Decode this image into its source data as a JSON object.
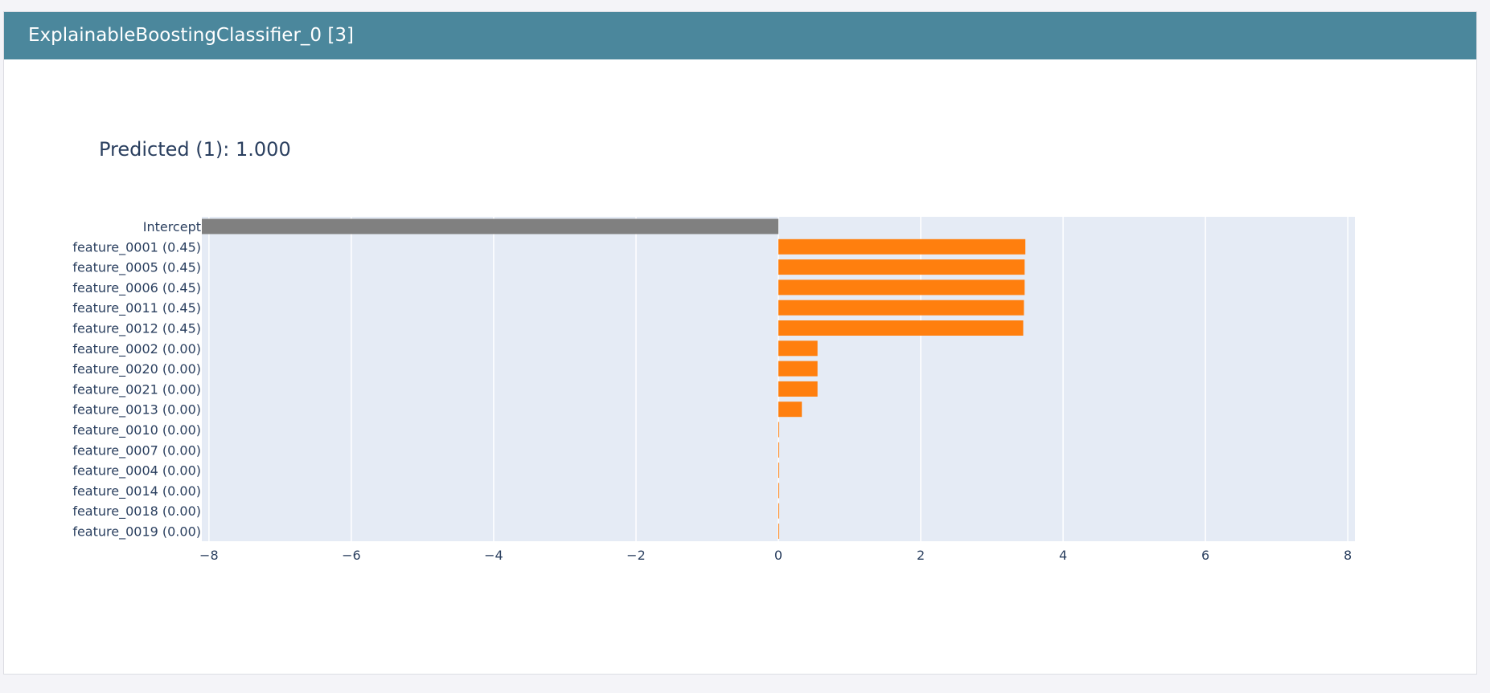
{
  "header": {
    "title": "ExplainableBoostingClassifier_0 [3]"
  },
  "colors": {
    "header_bg": "#4b879c",
    "plot_bg": "#e5ebf5",
    "intercept_bar": "#808080",
    "feature_bar": "#ff7f0e",
    "text": "#2a3f5f"
  },
  "chart_data": {
    "type": "bar",
    "orientation": "horizontal",
    "title": "Predicted (1): 1.000",
    "xlabel": "",
    "ylabel": "",
    "xlim": [
      -8.1,
      8.1
    ],
    "xticks": [
      -8,
      -6,
      -4,
      -2,
      0,
      2,
      4,
      6,
      8
    ],
    "xtick_labels": [
      "−8",
      "−6",
      "−4",
      "−2",
      "0",
      "2",
      "4",
      "6",
      "8"
    ],
    "grid": true,
    "categories": [
      "Intercept",
      "feature_0001 (0.45)",
      "feature_0005 (0.45)",
      "feature_0006 (0.45)",
      "feature_0011 (0.45)",
      "feature_0012 (0.45)",
      "feature_0002 (0.00)",
      "feature_0020 (0.00)",
      "feature_0021 (0.00)",
      "feature_0013 (0.00)",
      "feature_0010 (0.00)",
      "feature_0007 (0.00)",
      "feature_0004 (0.00)",
      "feature_0014 (0.00)",
      "feature_0018 (0.00)",
      "feature_0019 (0.00)"
    ],
    "values": [
      -8.1,
      3.47,
      3.46,
      3.46,
      3.45,
      3.44,
      0.55,
      0.55,
      0.55,
      0.33,
      0.01,
      0.01,
      0.01,
      0.01,
      0.01,
      0.01
    ],
    "bar_colors": [
      "#808080",
      "#ff7f0e",
      "#ff7f0e",
      "#ff7f0e",
      "#ff7f0e",
      "#ff7f0e",
      "#ff7f0e",
      "#ff7f0e",
      "#ff7f0e",
      "#ff7f0e",
      "#ff7f0e",
      "#ff7f0e",
      "#ff7f0e",
      "#ff7f0e",
      "#ff7f0e",
      "#ff7f0e"
    ]
  }
}
